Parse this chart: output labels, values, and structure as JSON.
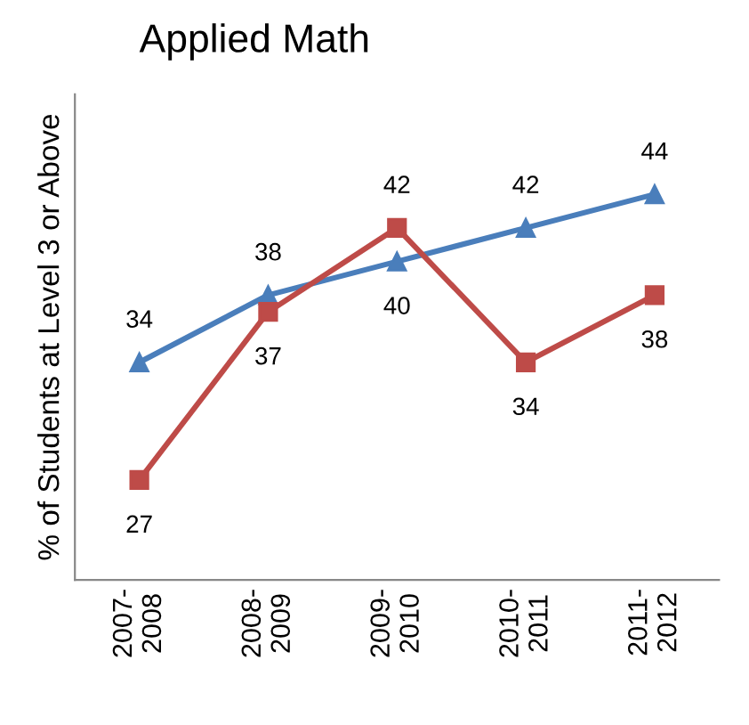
{
  "chart_data": {
    "type": "line",
    "title": "Applied Math",
    "ylabel": "% of Students at Level 3 or Above",
    "categories": [
      "2007-\n2008",
      "2008-\n2009",
      "2009-\n2010",
      "2010-\n2011",
      "2011-\n2012"
    ],
    "series": [
      {
        "color": "#4a7ebb",
        "marker": "triangle",
        "values": [
          34,
          38,
          40,
          42,
          44
        ]
      },
      {
        "color": "#be4b48",
        "marker": "square",
        "values": [
          27,
          37,
          42,
          34,
          38
        ]
      }
    ],
    "data_labels": true,
    "tick_labels": "x",
    "grid": false,
    "legend": false
  }
}
